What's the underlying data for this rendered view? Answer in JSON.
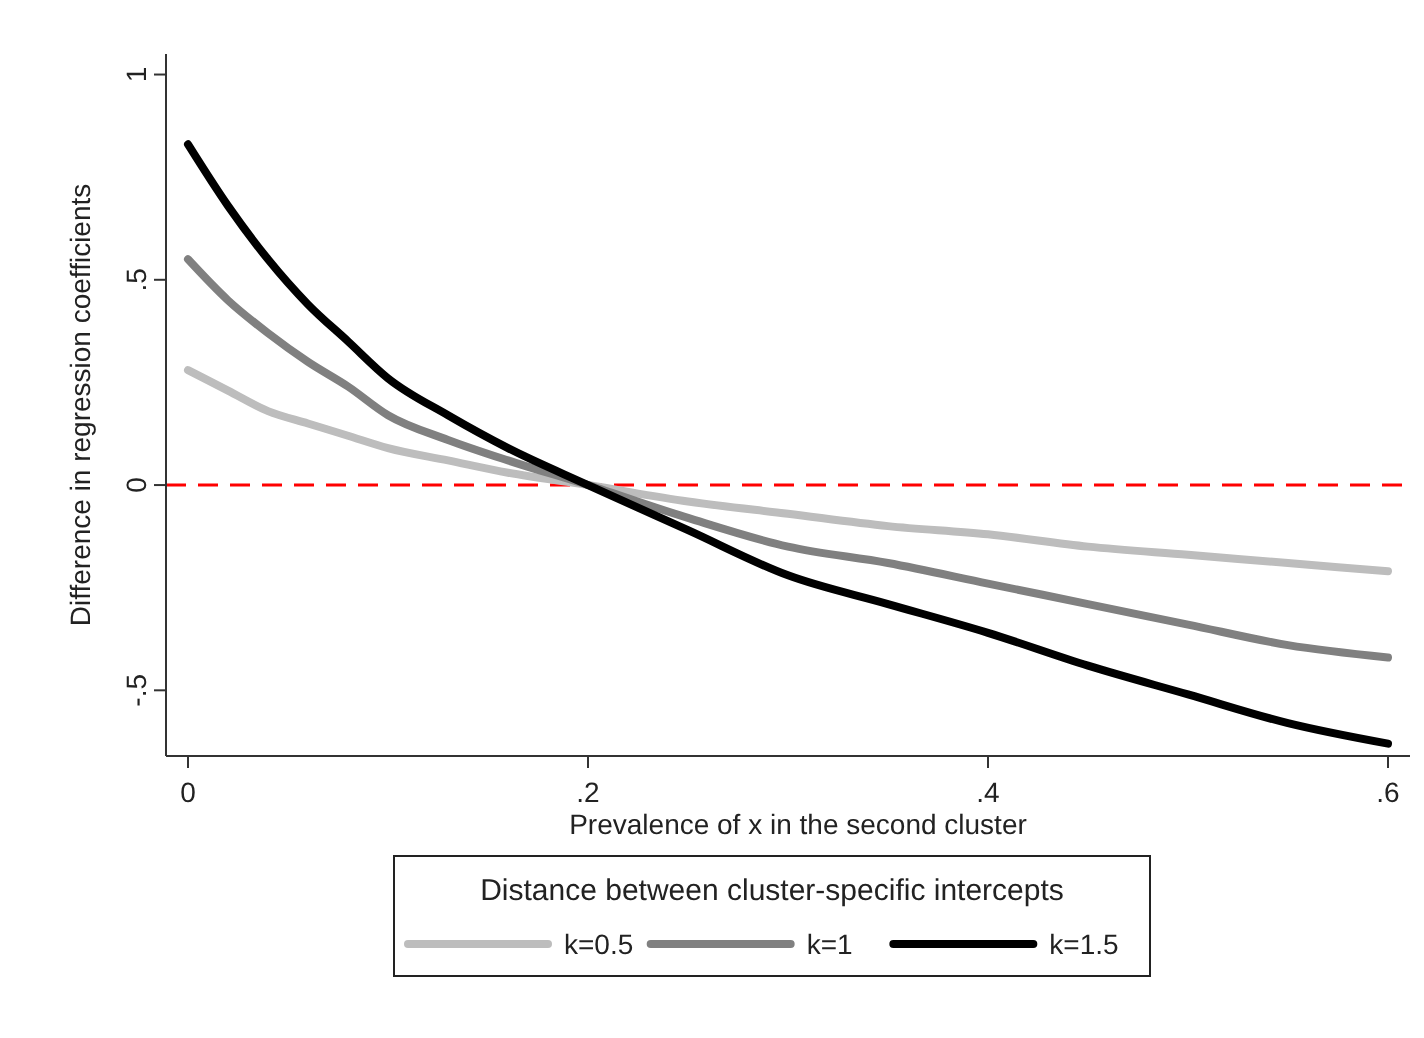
{
  "chart_data": {
    "type": "line",
    "xlabel": "Prevalence of x in the second cluster",
    "ylabel": "Difference in regression coefficients",
    "legend_title": "Distance between cluster-specific intercepts",
    "x": [
      0,
      0.02,
      0.04,
      0.06,
      0.08,
      0.1,
      0.13,
      0.16,
      0.2,
      0.25,
      0.3,
      0.35,
      0.4,
      0.45,
      0.5,
      0.55,
      0.6
    ],
    "series": [
      {
        "name": "k=0.5",
        "color": "#bdbdbd",
        "values": [
          0.28,
          0.23,
          0.18,
          0.15,
          0.12,
          0.09,
          0.06,
          0.03,
          0,
          -0.04,
          -0.07,
          -0.1,
          -0.12,
          -0.15,
          -0.17,
          -0.19,
          -0.21
        ]
      },
      {
        "name": "k=1",
        "color": "#808080",
        "values": [
          0.55,
          0.45,
          0.37,
          0.3,
          0.24,
          0.17,
          0.11,
          0.06,
          0,
          -0.08,
          -0.15,
          -0.19,
          -0.24,
          -0.29,
          -0.34,
          -0.39,
          -0.42
        ]
      },
      {
        "name": "k=1.5",
        "color": "#000000",
        "values": [
          0.83,
          0.68,
          0.55,
          0.44,
          0.35,
          0.26,
          0.17,
          0.09,
          0,
          -0.11,
          -0.22,
          -0.29,
          -0.36,
          -0.44,
          -0.51,
          -0.58,
          -0.63
        ]
      }
    ],
    "xlim": [
      -0.011,
      0.611
    ],
    "ylim": [
      -0.66,
      1.05
    ],
    "xticks": [
      0,
      {
        "value": 0.2,
        "label": ".2"
      },
      {
        "value": 0.4,
        "label": ".4"
      },
      {
        "value": 0.6,
        "label": ".6"
      }
    ],
    "yticks": [
      {
        "value": -0.5,
        "label": "-.5"
      },
      0,
      {
        "value": 0.5,
        "label": ".5"
      },
      1
    ],
    "ref_lines": [
      {
        "axis": "y",
        "value": 0,
        "color": "#ff0000",
        "line_style": "dashed"
      }
    ],
    "legend": "bottom",
    "grid": false,
    "line_style": "solid"
  }
}
